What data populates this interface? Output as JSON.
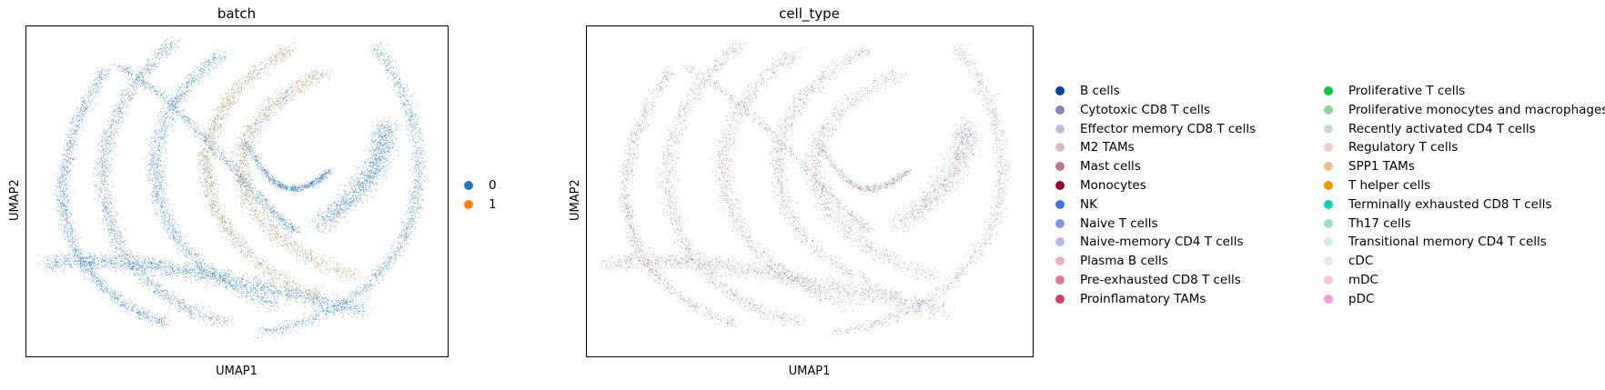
{
  "chart_data": [
    {
      "type": "scatter",
      "title": "batch",
      "xlabel": "UMAP1",
      "ylabel": "UMAP2",
      "grid": false,
      "legend_placement": "right",
      "legend": [
        {
          "label": "0",
          "color": "#1f77b4"
        },
        {
          "label": "1",
          "color": "#ff7f0e"
        }
      ]
    },
    {
      "type": "scatter",
      "title": "cell_type",
      "xlabel": "UMAP1",
      "ylabel": "UMAP2",
      "grid": false,
      "legend_placement": "right",
      "legend": [
        {
          "label": "B cells",
          "color": "#023fa5"
        },
        {
          "label": "Cytotoxic CD8 T cells",
          "color": "#7d87b9"
        },
        {
          "label": "Effector memory CD8 T cells",
          "color": "#bec1d4"
        },
        {
          "label": "M2 TAMs",
          "color": "#d6bcc0"
        },
        {
          "label": "Mast cells",
          "color": "#bb7784"
        },
        {
          "label": "Monocytes",
          "color": "#8e063b"
        },
        {
          "label": "NK",
          "color": "#4a6fe3"
        },
        {
          "label": "Naive T cells",
          "color": "#8595e1"
        },
        {
          "label": "Naive-memory CD4 T cells",
          "color": "#b5bbe3"
        },
        {
          "label": "Plasma B cells",
          "color": "#e6afb9"
        },
        {
          "label": "Pre-exhausted CD8 T cells",
          "color": "#e07b91"
        },
        {
          "label": "Proinflamatory TAMs",
          "color": "#d33f6a"
        },
        {
          "label": "Proliferative T cells",
          "color": "#11c638"
        },
        {
          "label": "Proliferative monocytes and macrophages",
          "color": "#8dd593"
        },
        {
          "label": "Recently activated CD4 T cells",
          "color": "#c6dec7"
        },
        {
          "label": "Regulatory T cells",
          "color": "#ead3c6"
        },
        {
          "label": "SPP1 TAMs",
          "color": "#f0b98d"
        },
        {
          "label": "T helper cells",
          "color": "#ef9708"
        },
        {
          "label": "Terminally exhausted CD8 T cells",
          "color": "#0fcfc0"
        },
        {
          "label": "Th17 cells",
          "color": "#9cded6"
        },
        {
          "label": "Transitional memory CD4 T cells",
          "color": "#d5eae7"
        },
        {
          "label": "cDC",
          "color": "#f3e1eb"
        },
        {
          "label": "mDC",
          "color": "#f6c4e1"
        },
        {
          "label": "pDC",
          "color": "#f79cd4"
        }
      ]
    }
  ]
}
